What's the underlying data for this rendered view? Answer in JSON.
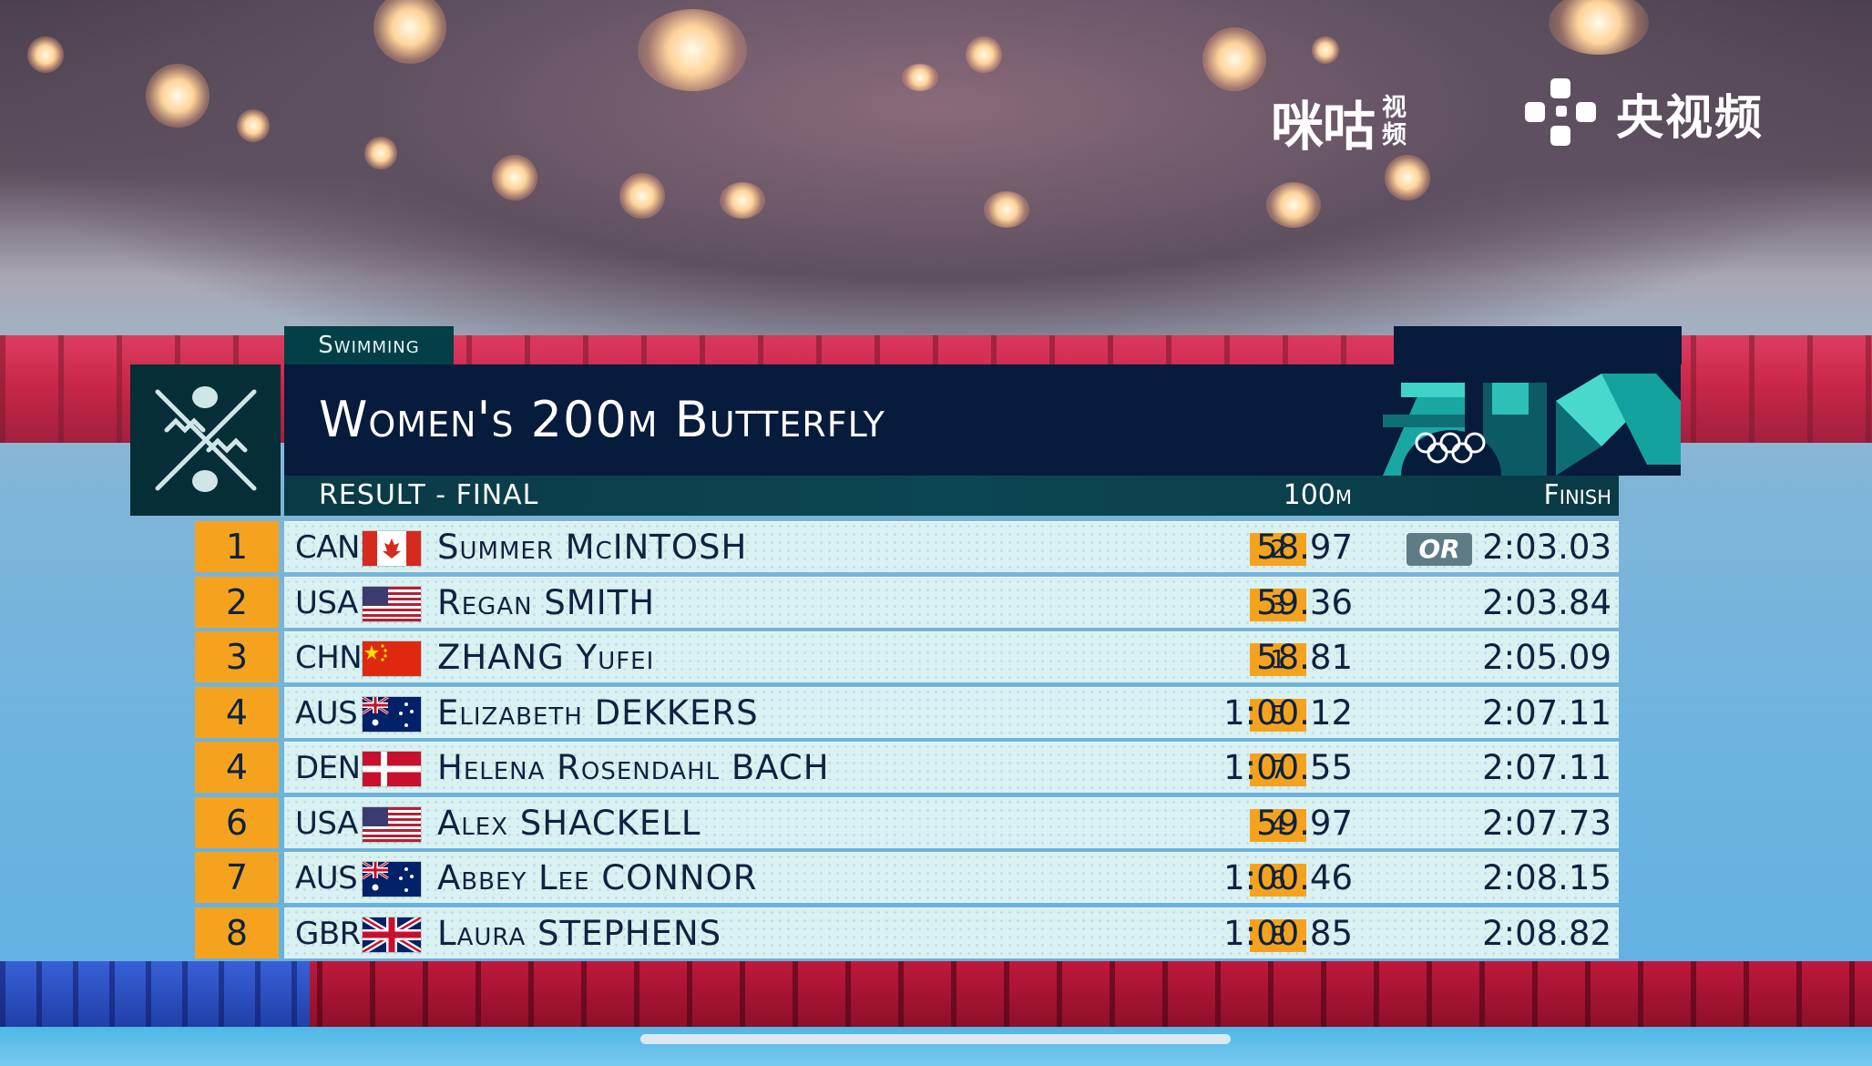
{
  "broadcast": {
    "logo_migu_wordmark": "咪咕",
    "logo_migu_sub_1": "视",
    "logo_migu_sub_2": "频",
    "logo_cctv_wordmark": "央视频"
  },
  "graphic": {
    "sport": "Swimming",
    "title": "Women's 200m Butterfly",
    "subtitle": "RESULT - FINAL",
    "col_split": "100m",
    "col_finish": "Finish",
    "pictogram_icon": "swimming-pictogram-icon",
    "olympic_rings_icon": "olympic-rings-icon",
    "colors": {
      "navy": "#071b3c",
      "teal": "#0a3a46",
      "rank_orange": "#f5a31e",
      "row_bg": "#d9f1f2",
      "record_badge": "#5f7b86"
    }
  },
  "results": [
    {
      "rank": "1",
      "noc": "CAN",
      "flag": "canada-flag",
      "name": "Summer McINTOSH",
      "split_rank": "2",
      "split": "58.97",
      "record": "OR",
      "finish": "2:03.03"
    },
    {
      "rank": "2",
      "noc": "USA",
      "flag": "usa-flag",
      "name": "Regan SMITH",
      "split_rank": "3",
      "split": "59.36",
      "record": "",
      "finish": "2:03.84"
    },
    {
      "rank": "3",
      "noc": "CHN",
      "flag": "china-flag",
      "name": "ZHANG Yufei",
      "split_rank": "1",
      "split": "58.81",
      "record": "",
      "finish": "2:05.09"
    },
    {
      "rank": "4",
      "noc": "AUS",
      "flag": "australia-flag",
      "name": "Elizabeth DEKKERS",
      "split_rank": "5",
      "split": "1:00.12",
      "record": "",
      "finish": "2:07.11"
    },
    {
      "rank": "4",
      "noc": "DEN",
      "flag": "denmark-flag",
      "name": "Helena Rosendahl BACH",
      "split_rank": "7",
      "split": "1:00.55",
      "record": "",
      "finish": "2:07.11"
    },
    {
      "rank": "6",
      "noc": "USA",
      "flag": "usa-flag",
      "name": "Alex SHACKELL",
      "split_rank": "4",
      "split": "59.97",
      "record": "",
      "finish": "2:07.73"
    },
    {
      "rank": "7",
      "noc": "AUS",
      "flag": "australia-flag",
      "name": "Abbey Lee CONNOR",
      "split_rank": "6",
      "split": "1:00.46",
      "record": "",
      "finish": "2:08.15"
    },
    {
      "rank": "8",
      "noc": "GBR",
      "flag": "uk-flag",
      "name": "Laura STEPHENS",
      "split_rank": "8",
      "split": "1:00.85",
      "record": "",
      "finish": "2:08.82"
    }
  ]
}
